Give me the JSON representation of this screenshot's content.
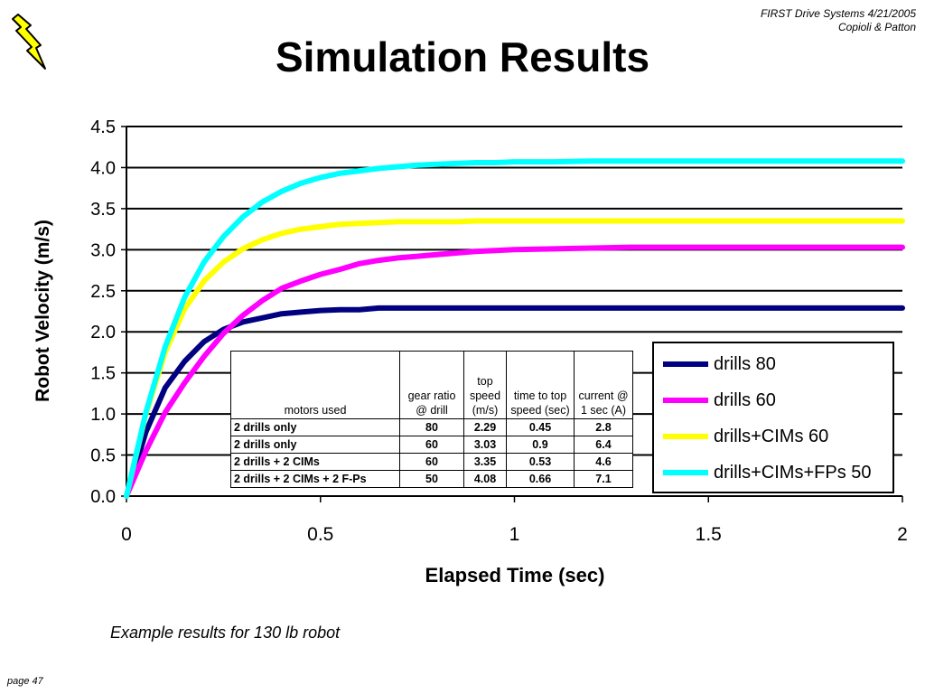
{
  "header": {
    "line1": "FIRST Drive Systems 4/21/2005",
    "line2": "Copioli & Patton"
  },
  "slide": {
    "title": "Simulation Results",
    "caption": "Example results for 130 lb robot",
    "page": "page 47"
  },
  "icons": {
    "logo": "lightning-bolt-icon"
  },
  "chart_data": {
    "type": "line",
    "xlabel": "Elapsed Time (sec)",
    "ylabel": "Robot Velocity (m/s)",
    "xlim": [
      0,
      2
    ],
    "ylim": [
      0,
      4.5
    ],
    "xticks": [
      "0",
      "0.5",
      "1",
      "1.5",
      "2"
    ],
    "xtick_values": [
      0,
      0.5,
      1,
      1.5,
      2
    ],
    "yticks": [
      "0.0",
      "0.5",
      "1.0",
      "1.5",
      "2.0",
      "2.5",
      "3.0",
      "3.5",
      "4.0",
      "4.5"
    ],
    "ytick_values": [
      0,
      0.5,
      1,
      1.5,
      2,
      2.5,
      3,
      3.5,
      4,
      4.5
    ],
    "grid": "horizontal",
    "legend_position": "right",
    "x": [
      0,
      0.05,
      0.1,
      0.15,
      0.2,
      0.25,
      0.3,
      0.35,
      0.4,
      0.45,
      0.5,
      0.55,
      0.6,
      0.65,
      0.7,
      0.75,
      0.8,
      0.85,
      0.9,
      0.95,
      1.0,
      1.1,
      1.2,
      1.3,
      1.4,
      1.5,
      1.6,
      1.7,
      1.8,
      1.9,
      2.0
    ],
    "series": [
      {
        "name": "drills 80",
        "color": "#000080",
        "values": [
          0,
          0.78,
          1.32,
          1.64,
          1.88,
          2.03,
          2.12,
          2.17,
          2.22,
          2.24,
          2.26,
          2.27,
          2.27,
          2.29,
          2.29,
          2.29,
          2.29,
          2.29,
          2.29,
          2.29,
          2.29,
          2.29,
          2.29,
          2.29,
          2.29,
          2.29,
          2.29,
          2.29,
          2.29,
          2.29,
          2.29
        ]
      },
      {
        "name": "drills 60",
        "color": "#ff00ff",
        "values": [
          0,
          0.55,
          1.02,
          1.38,
          1.7,
          1.98,
          2.2,
          2.38,
          2.53,
          2.62,
          2.7,
          2.76,
          2.83,
          2.87,
          2.9,
          2.92,
          2.94,
          2.96,
          2.98,
          2.99,
          3.0,
          3.01,
          3.02,
          3.03,
          3.03,
          3.03,
          3.03,
          3.03,
          3.03,
          3.03,
          3.03
        ]
      },
      {
        "name": "drills+CIMs 60",
        "color": "#ffff00",
        "values": [
          0,
          1.0,
          1.75,
          2.28,
          2.62,
          2.85,
          3.01,
          3.12,
          3.2,
          3.25,
          3.28,
          3.31,
          3.32,
          3.33,
          3.34,
          3.34,
          3.34,
          3.34,
          3.35,
          3.35,
          3.35,
          3.35,
          3.35,
          3.35,
          3.35,
          3.35,
          3.35,
          3.35,
          3.35,
          3.35,
          3.35
        ]
      },
      {
        "name": "drills+CIMs+FPs 50",
        "color": "#00ffff",
        "values": [
          0,
          1.02,
          1.82,
          2.42,
          2.85,
          3.16,
          3.4,
          3.58,
          3.71,
          3.81,
          3.88,
          3.93,
          3.96,
          3.99,
          4.01,
          4.03,
          4.04,
          4.05,
          4.06,
          4.06,
          4.07,
          4.07,
          4.08,
          4.08,
          4.08,
          4.08,
          4.08,
          4.08,
          4.08,
          4.08,
          4.08
        ]
      }
    ],
    "table": {
      "headers": [
        "motors used",
        "gear ratio @ drill",
        "top speed (m/s)",
        "time to top speed (sec)",
        "current @ 1 sec (A)"
      ],
      "rows": [
        [
          "2 drills only",
          "80",
          "2.29",
          "0.45",
          "2.8"
        ],
        [
          "2 drills only",
          "60",
          "3.03",
          "0.9",
          "6.4"
        ],
        [
          "2 drills + 2 CIMs",
          "60",
          "3.35",
          "0.53",
          "4.6"
        ],
        [
          "2 drills + 2 CIMs + 2 F-Ps",
          "50",
          "4.08",
          "0.66",
          "7.1"
        ]
      ]
    }
  }
}
